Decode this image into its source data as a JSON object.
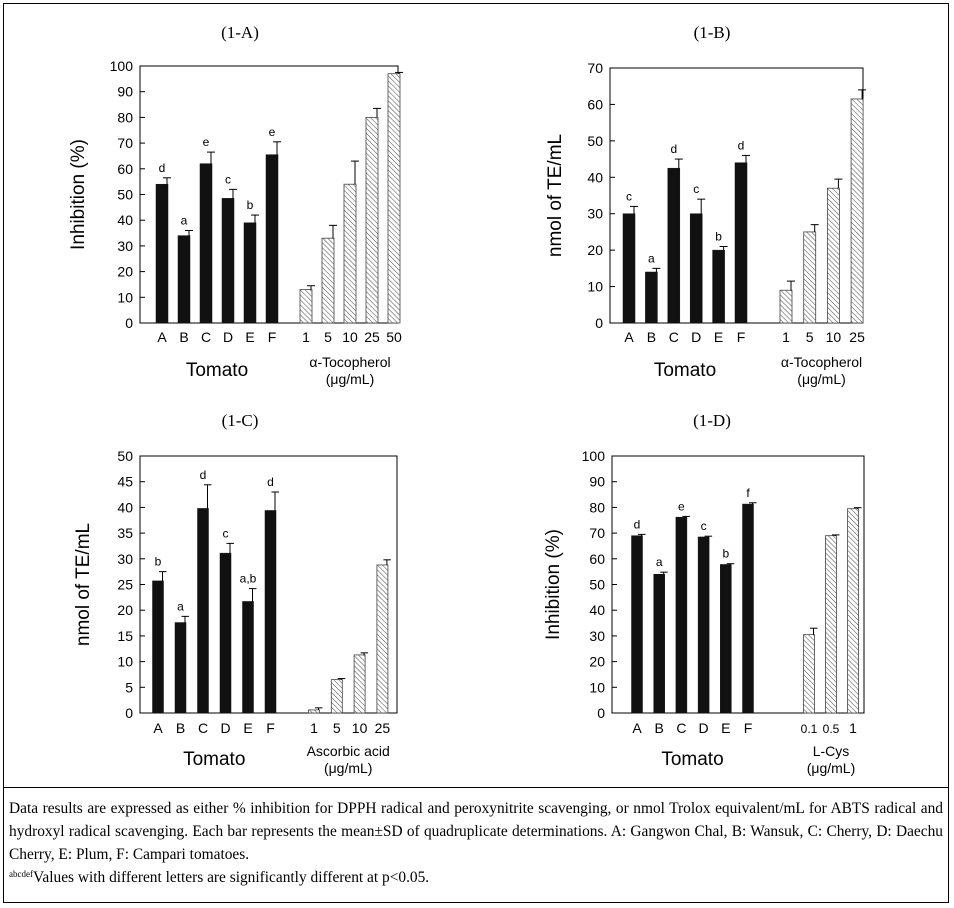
{
  "colors": {
    "solid_bar": "#111111",
    "hatched_bar": "#ffffff",
    "axis": "#000000"
  },
  "chart_data": [
    {
      "id": "1-A",
      "title": "(1-A)",
      "type": "bar",
      "ylabel": "Inhibition (%)",
      "ylim": [
        0,
        100
      ],
      "yticks": [
        0,
        10,
        20,
        30,
        40,
        50,
        60,
        70,
        80,
        90,
        100
      ],
      "groups": [
        {
          "name": "Tomato",
          "name_lines": [
            "Tomato"
          ],
          "style": "solid",
          "categories": [
            "A",
            "B",
            "C",
            "D",
            "E",
            "F"
          ],
          "values": [
            54,
            34,
            62,
            48.5,
            39,
            65.5
          ],
          "errors": [
            2.5,
            2,
            4.5,
            3.5,
            3,
            5
          ],
          "letters": [
            "d",
            "a",
            "e",
            "c",
            "b",
            "e"
          ]
        },
        {
          "name": "α-Tocopherol (μg/mL)",
          "name_lines": [
            "α-Tocopherol",
            "(μg/mL)"
          ],
          "style": "hatched",
          "categories": [
            "1",
            "5",
            "10",
            "25",
            "50"
          ],
          "values": [
            13,
            33,
            54,
            80,
            97
          ],
          "errors": [
            1.5,
            5,
            9,
            3.5,
            0.5
          ],
          "letters": []
        }
      ]
    },
    {
      "id": "1-B",
      "title": "(1-B)",
      "type": "bar",
      "ylabel": "nmol of TE/mL",
      "ylim": [
        0,
        70
      ],
      "yticks": [
        0,
        10,
        20,
        30,
        40,
        50,
        60,
        70
      ],
      "groups": [
        {
          "name": "Tomato",
          "name_lines": [
            "Tomato"
          ],
          "style": "solid",
          "categories": [
            "A",
            "B",
            "C",
            "D",
            "E",
            "F"
          ],
          "values": [
            30,
            14,
            42.5,
            30,
            20,
            44
          ],
          "errors": [
            2,
            1,
            2.5,
            4,
            1,
            2
          ],
          "letters": [
            "c",
            "a",
            "d",
            "c",
            "b",
            "d"
          ]
        },
        {
          "name": "α-Tocopherol (μg/mL)",
          "name_lines": [
            "α-Tocopherol",
            "(μg/mL)"
          ],
          "style": "hatched",
          "categories": [
            "1",
            "5",
            "10",
            "25"
          ],
          "values": [
            9,
            25,
            37,
            61.5
          ],
          "errors": [
            2.5,
            2,
            2.5,
            2.5
          ],
          "letters": []
        }
      ]
    },
    {
      "id": "1-C",
      "title": "(1-C)",
      "type": "bar",
      "ylabel": "nmol of TE/mL",
      "ylim": [
        0,
        50
      ],
      "yticks": [
        0,
        5,
        10,
        15,
        20,
        25,
        30,
        35,
        40,
        45,
        50
      ],
      "groups": [
        {
          "name": "Tomato",
          "name_lines": [
            "Tomato"
          ],
          "style": "solid",
          "categories": [
            "A",
            "B",
            "C",
            "D",
            "E",
            "F"
          ],
          "values": [
            25.7,
            17.6,
            39.8,
            31.1,
            21.7,
            39.4
          ],
          "errors": [
            1.8,
            1.2,
            4.6,
            1.9,
            2.5,
            3.6
          ],
          "letters": [
            "b",
            "a",
            "d",
            "c",
            "a,b",
            "d"
          ]
        },
        {
          "name": "Ascorbic acid (μg/mL)",
          "name_lines": [
            "Ascorbic acid",
            "(μg/mL)"
          ],
          "style": "hatched",
          "categories": [
            "1",
            "5",
            "10",
            "25"
          ],
          "values": [
            0.6,
            6.5,
            11.3,
            28.8
          ],
          "errors": [
            0.4,
            0.2,
            0.4,
            1
          ],
          "letters": []
        }
      ]
    },
    {
      "id": "1-D",
      "title": "(1-D)",
      "type": "bar",
      "ylabel": "Inhibition (%)",
      "ylim": [
        0,
        100
      ],
      "yticks": [
        0,
        10,
        20,
        30,
        40,
        50,
        60,
        70,
        80,
        90,
        100
      ],
      "groups": [
        {
          "name": "Tomato",
          "name_lines": [
            "Tomato"
          ],
          "style": "solid",
          "categories": [
            "A",
            "B",
            "C",
            "D",
            "E",
            "F"
          ],
          "values": [
            69,
            54,
            76.2,
            68.5,
            57.8,
            81.3
          ],
          "errors": [
            0.5,
            0.8,
            0.3,
            0.3,
            0.3,
            0.5
          ],
          "letters": [
            "d",
            "a",
            "e",
            "c",
            "b",
            "f"
          ]
        },
        {
          "name": "L-Cys (μg/mL)",
          "name_lines": [
            "L-Cys",
            "(μg/mL)"
          ],
          "style": "hatched",
          "categories": [
            "0.1",
            "0.5",
            "1"
          ],
          "values": [
            30.5,
            69,
            79.5
          ],
          "errors": [
            2.5,
            0.3,
            0.4
          ],
          "letters": []
        }
      ]
    }
  ],
  "caption": {
    "text": "Data results are expressed as either % inhibition for DPPH radical and peroxynitrite scavenging, or nmol Trolox equivalent/mL for ABTS radical and hydroxyl radical scavenging. Each bar represents the mean±SD of quadruplicate determinations. A: Gangwon Chal, B: Wansuk, C: Cherry, D: Daechu Cherry, E: Plum, F: Campari tomatoes.",
    "superscript": "abcdef",
    "footnote": "Values with different letters are significantly different at p<0.05."
  }
}
